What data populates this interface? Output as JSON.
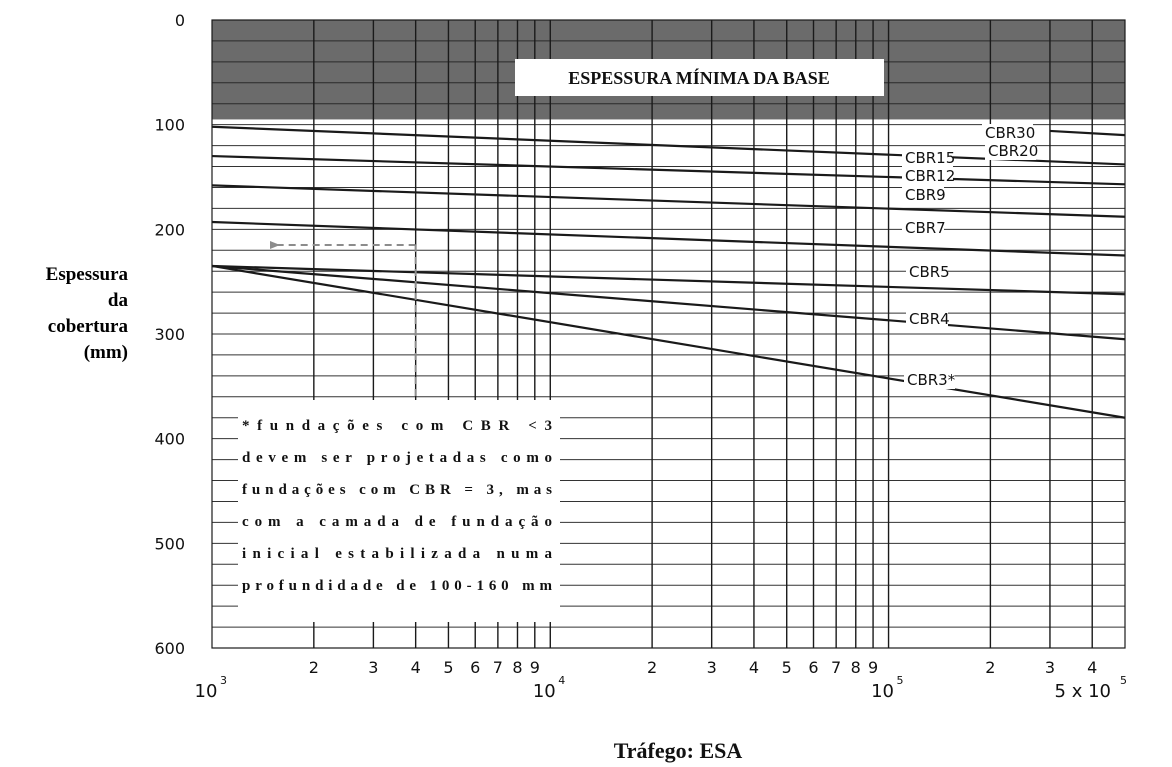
{
  "chart_data": {
    "type": "line",
    "title": "",
    "xlabel": "Tráfego: ESA",
    "ylabel": [
      "Espessura",
      "da",
      "cobertura",
      "(mm)"
    ],
    "x_scale": "log",
    "xlim": [
      1000,
      500000
    ],
    "ylim": [
      0,
      600
    ],
    "y_inverted": true,
    "y_ticks": [
      0,
      100,
      200,
      300,
      400,
      500,
      600
    ],
    "x_tick_minor_labels": [
      {
        "x": 2000,
        "label": "2"
      },
      {
        "x": 3000,
        "label": "3"
      },
      {
        "x": 4000,
        "label": "4"
      },
      {
        "x": 5000,
        "label": "5"
      },
      {
        "x": 6000,
        "label": "6"
      },
      {
        "x": 7000,
        "label": "7"
      },
      {
        "x": 8000,
        "label": "8"
      },
      {
        "x": 9000,
        "label": "9"
      },
      {
        "x": 20000,
        "label": "2"
      },
      {
        "x": 30000,
        "label": "3"
      },
      {
        "x": 40000,
        "label": "4"
      },
      {
        "x": 50000,
        "label": "5"
      },
      {
        "x": 60000,
        "label": "6"
      },
      {
        "x": 70000,
        "label": "7"
      },
      {
        "x": 80000,
        "label": "8"
      },
      {
        "x": 90000,
        "label": "9"
      },
      {
        "x": 200000,
        "label": "2"
      },
      {
        "x": 300000,
        "label": "3"
      },
      {
        "x": 400000,
        "label": "4"
      }
    ],
    "x_tick_major_labels": [
      {
        "x": 1000,
        "base": "10",
        "exp": "3"
      },
      {
        "x": 10000,
        "base": "10",
        "exp": "4"
      },
      {
        "x": 100000,
        "base": "10",
        "exp": "5"
      },
      {
        "x": 500000,
        "base": "5 x 10",
        "exp": "5"
      }
    ],
    "shaded_band": {
      "label": "ESPESSURA MÍNIMA DA BASE",
      "y_from": 0,
      "y_to": 95,
      "color": "#6b6b6b"
    },
    "series": [
      {
        "name": "CBR30",
        "x": [
          1000,
          500000
        ],
        "y": [
          null,
          null
        ]
      },
      {
        "name": "CBR20",
        "x": [
          300000,
          500000
        ],
        "y": [
          106,
          110
        ]
      },
      {
        "name": "CBR15",
        "x": [
          1000,
          500000
        ],
        "y": [
          102,
          138
        ]
      },
      {
        "name": "CBR12",
        "x": [
          1000,
          500000
        ],
        "y": [
          130,
          157
        ]
      },
      {
        "name": "CBR9",
        "x": [
          1000,
          500000
        ],
        "y": [
          158,
          188
        ]
      },
      {
        "name": "CBR7",
        "x": [
          1000,
          500000
        ],
        "y": [
          193,
          225
        ]
      },
      {
        "name": "CBR5",
        "x": [
          1000,
          500000
        ],
        "y": [
          235,
          262
        ]
      },
      {
        "name": "CBR4",
        "x": [
          1000,
          500000
        ],
        "y": [
          null,
          305
        ]
      },
      {
        "name": "CBR3*",
        "x": [
          1000,
          500000
        ],
        "y": [
          null,
          380
        ]
      }
    ],
    "example_path": {
      "x_from": 4000,
      "y_at": 215
    },
    "note": [
      "*fundações com CBR <3",
      "devem ser projetadas como",
      "fundações com CBR = 3, mas",
      "com a camada de fundação",
      "inicial estabilizada numa",
      "profundidade de 100-160 mm"
    ],
    "colors": {
      "band": "#6b6b6b",
      "line": "#1a1a1a",
      "grid": "#333333",
      "dashed": "#8c8c8c"
    }
  }
}
